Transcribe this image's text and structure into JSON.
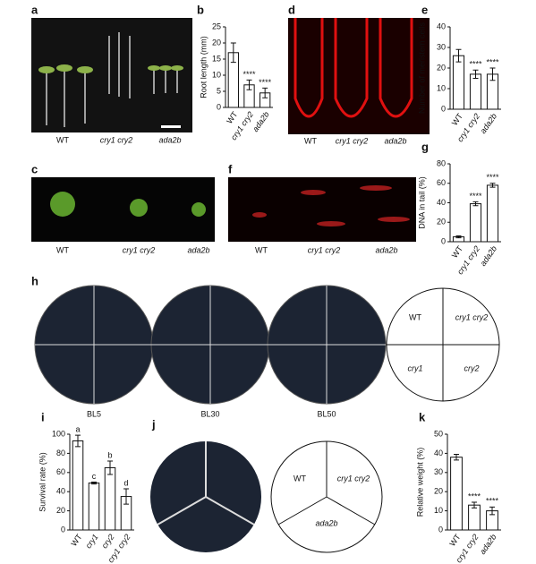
{
  "panels": [
    {
      "label": "a",
      "captions": [
        "WT",
        "cry1 cry2",
        "ada2b"
      ]
    },
    {
      "label": "d",
      "captions": [
        "WT",
        "cry1 cry2",
        "ada2b"
      ]
    },
    {
      "label": "c",
      "captions": [
        "WT",
        "cry1 cry2",
        "ada2b"
      ]
    },
    {
      "label": "f",
      "captions": [
        "WT",
        "cry1 cry2",
        "ada2b"
      ]
    },
    {
      "label": "h",
      "captions": [
        "BL5",
        "BL30",
        "BL50"
      ],
      "key": [
        "WT",
        "cry1 cry2",
        "cry1",
        "cry2"
      ]
    },
    {
      "label": "j",
      "key": [
        "WT",
        "cry1 cry2",
        "ada2b"
      ]
    }
  ],
  "chart_data": [
    {
      "type": "bar",
      "label": "b",
      "y_label": "Root length (mm)",
      "categories": [
        "WT",
        "cry1 cry2",
        "ada2b"
      ],
      "values": [
        17,
        7,
        4.5
      ],
      "errors": [
        3,
        1.5,
        1.5
      ],
      "significance": [
        null,
        "****",
        "****"
      ],
      "ylim": [
        0,
        25
      ],
      "yticks": [
        0,
        5,
        10,
        15,
        20,
        25
      ],
      "color": "#ffffff"
    },
    {
      "type": "bar",
      "label": "e",
      "y_label": "Number of meristem cells",
      "categories": [
        "WT",
        "cry1 cry2",
        "ada2b"
      ],
      "values": [
        26,
        17,
        17
      ],
      "errors": [
        3,
        2,
        3
      ],
      "significance": [
        null,
        "****",
        "****"
      ],
      "ylim": [
        0,
        40
      ],
      "yticks": [
        0,
        10,
        20,
        30,
        40
      ],
      "color": "#ffffff"
    },
    {
      "type": "bar",
      "label": "g",
      "y_label": "DNA in tail (%)",
      "categories": [
        "WT",
        "cry1 cry2",
        "ada2b"
      ],
      "values": [
        5,
        39,
        58
      ],
      "errors": [
        1,
        2,
        2
      ],
      "significance": [
        null,
        "****",
        "****"
      ],
      "ylim": [
        0,
        80
      ],
      "yticks": [
        0,
        20,
        40,
        60,
        80
      ],
      "color": "#ffffff"
    },
    {
      "type": "bar",
      "label": "i",
      "y_label": "Survival rate (%)",
      "categories": [
        "WT",
        "cry1",
        "cry2",
        "cry1 cry2"
      ],
      "values": [
        93,
        49,
        65,
        35
      ],
      "errors": [
        6,
        1,
        7,
        8
      ],
      "significance": [
        "a",
        "c",
        "b",
        "d"
      ],
      "ylim": [
        0,
        100
      ],
      "yticks": [
        0,
        20,
        40,
        60,
        80,
        100
      ],
      "color": "#ffffff"
    },
    {
      "type": "bar",
      "label": "k",
      "y_label": "Relative weight (%)",
      "categories": [
        "WT",
        "cry1 cry2",
        "ada2b"
      ],
      "values": [
        38,
        13,
        10
      ],
      "errors": [
        1.5,
        1.5,
        2
      ],
      "significance": [
        null,
        "****",
        "****"
      ],
      "ylim": [
        0,
        50
      ],
      "yticks": [
        0,
        10,
        20,
        30,
        40,
        50
      ],
      "color": "#ffffff"
    }
  ]
}
